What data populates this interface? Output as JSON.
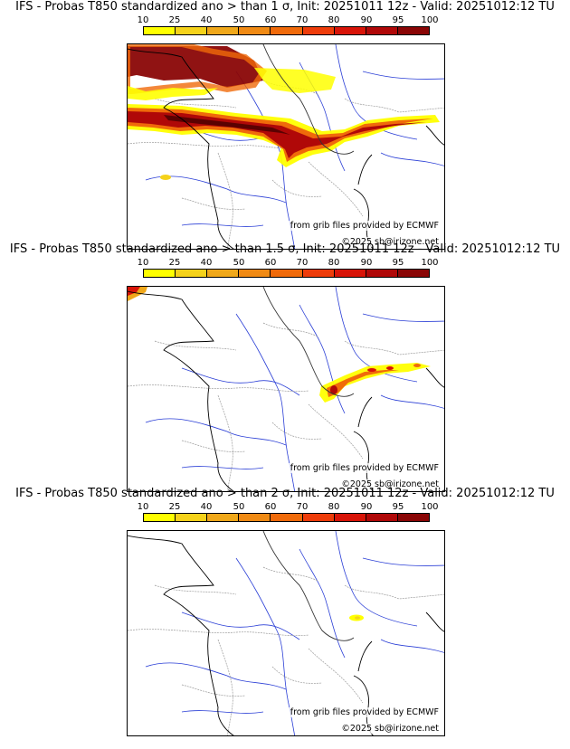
{
  "legend": {
    "ticks": [
      "10",
      "25",
      "40",
      "50",
      "60",
      "70",
      "80",
      "90",
      "95",
      "100"
    ],
    "colors": [
      "#ffff00",
      "#f5d21a",
      "#f0a81a",
      "#f08a14",
      "#f06a0a",
      "#ee3c0a",
      "#d81408",
      "#b00808",
      "#8a0606",
      "#5a0202"
    ]
  },
  "panels": [
    {
      "title": "IFS - Probas T850  standardized ano > than 1 σ, Init: 20251011 12z - Valid: 20251012:12 TU",
      "credit_source": "from grib files provided by ECMWF",
      "credit_copyright": "©2025 sb@irizone.net"
    },
    {
      "title": "IFS - Probas T850  standardized ano > than 1.5 σ, Init: 20251011 12z - Valid: 20251012:12 TU",
      "credit_source": "from grib files provided by ECMWF",
      "credit_copyright": "©2025 sb@irizone.net"
    },
    {
      "title": "IFS - Probas T850  standardized ano > than 2 σ, Init: 20251011 12z - Valid: 20251012:12 TU",
      "credit_source": "from grib files provided by ECMWF",
      "credit_copyright": "©2025 sb@irizone.net"
    }
  ]
}
